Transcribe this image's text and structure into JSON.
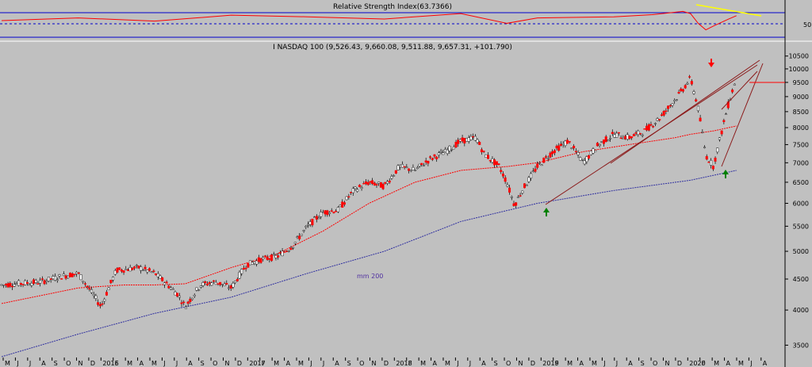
{
  "rsi_panel": {
    "title": "Relative Strength Index(63.7366)",
    "ylabel_50": "50"
  },
  "price_panel": {
    "title": "I NASDAQ 100 (9,526.43, 9,660.08, 9,511.88, 9,657.31, +101.790)",
    "ma_label": "mm 200"
  },
  "colors": {
    "background": "#c0c0c0",
    "rsi_line": "#ff0000",
    "rsi_bands": "#0000cc",
    "up_candle": "#ffffff",
    "down_candle": "#ff0000",
    "candle_outline": "#000000",
    "ma_short": "#ff0000",
    "ma_200": "#3030a0",
    "trend_lines": "#8b1a1a",
    "yellow_line": "#ffff00",
    "arrow_red": "#ff0000",
    "arrow_green": "#008000"
  },
  "chart_data": {
    "type": "line",
    "title": "I NASDAQ 100 (9,526.43, 9,660.08, 9,511.88, 9,657.31, +101.790)",
    "subtitle": "Relative Strength Index(63.7366)",
    "y_ticks": [
      3500,
      4000,
      4500,
      5000,
      5500,
      6000,
      6500,
      7000,
      7500,
      8000,
      8500,
      9000,
      9500,
      10000,
      10500
    ],
    "ylim": [
      3300,
      10650
    ],
    "x_tick_labels": [
      "M",
      "J",
      "J",
      "A",
      "S",
      "O",
      "N",
      "D",
      "2016",
      "F",
      "M",
      "A",
      "M",
      "J",
      "J",
      "A",
      "S",
      "O",
      "N",
      "D",
      "2017",
      "F",
      "M",
      "A",
      "M",
      "J",
      "J",
      "A",
      "S",
      "O",
      "N",
      "D",
      "2018",
      "F",
      "M",
      "A",
      "M",
      "J",
      "J",
      "A",
      "S",
      "O",
      "N",
      "D",
      "2019",
      "F",
      "M",
      "A",
      "M",
      "J",
      "J",
      "A",
      "S",
      "O",
      "N",
      "D",
      "2020",
      "F",
      "M",
      "A",
      "M",
      "J",
      "A"
    ],
    "series": [
      {
        "name": "price",
        "x": [
          0,
          5,
          8,
          10,
          13,
          15,
          18,
          20,
          23,
          24,
          26,
          28,
          30,
          32,
          34,
          36,
          38,
          40,
          42,
          44,
          46,
          48,
          50,
          52,
          54,
          56,
          58,
          60,
          62,
          63,
          65,
          66,
          67,
          68,
          69,
          70
        ],
        "values": [
          4400,
          4450,
          4550,
          4600,
          4050,
          4650,
          4700,
          4600,
          4250,
          4050,
          4400,
          4450,
          4350,
          4750,
          4850,
          4900,
          5100,
          5500,
          5800,
          5850,
          6300,
          6500,
          6400,
          6900,
          6800,
          7100,
          7300,
          7600,
          7700,
          7250,
          6900,
          6500,
          5950,
          6300,
          6600,
          6900
        ]
      },
      {
        "name": "price-2019-2020",
        "x": [
          70,
          72,
          74,
          76,
          78,
          80,
          82,
          84,
          86,
          87,
          88,
          89,
          90,
          91,
          92,
          93,
          94,
          95,
          96
        ],
        "values": [
          6900,
          7300,
          7600,
          7000,
          7500,
          7800,
          7700,
          7900,
          8300,
          8600,
          8900,
          9250,
          9650,
          8600,
          7200,
          6900,
          7800,
          8800,
          9650
        ]
      },
      {
        "name": "mm 200",
        "x": [
          0,
          10,
          20,
          30,
          40,
          50,
          60,
          70,
          80,
          90,
          96
        ],
        "values": [
          3350,
          3650,
          3950,
          4200,
          4600,
          5000,
          5600,
          6000,
          6300,
          6550,
          6800
        ]
      },
      {
        "name": "moving-average-short",
        "x": [
          0,
          10,
          16,
          20,
          24,
          30,
          36,
          42,
          48,
          54,
          60,
          66,
          70,
          76,
          82,
          88,
          90,
          93,
          96
        ],
        "values": [
          4100,
          4350,
          4400,
          4400,
          4420,
          4700,
          4950,
          5400,
          6000,
          6500,
          6800,
          6900,
          7000,
          7300,
          7500,
          7700,
          7800,
          7900,
          8050
        ]
      },
      {
        "name": "rsi",
        "x": [
          0,
          10,
          20,
          30,
          40,
          50,
          60,
          66,
          70,
          80,
          85,
          89,
          90,
          91,
          92,
          93,
          95,
          96
        ],
        "values": [
          55,
          60,
          54,
          65,
          62,
          58,
          68,
          50,
          60,
          62,
          66,
          72,
          68,
          50,
          38,
          45,
          58,
          64
        ]
      }
    ],
    "rsi_band_levels": [
      70,
      50,
      30
    ],
    "annotations": [
      "mm 200"
    ],
    "grid": false,
    "legend": "none"
  }
}
